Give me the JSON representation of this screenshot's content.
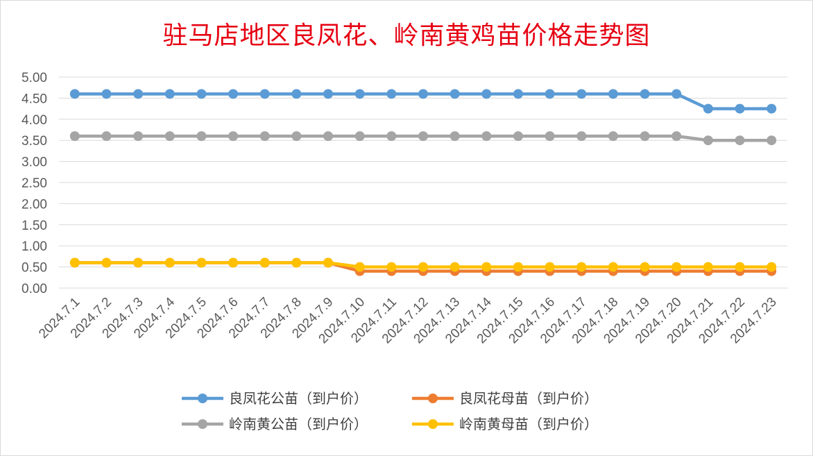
{
  "chart_data": {
    "type": "line",
    "title": "驻马店地区良凤花、岭南黄鸡苗价格走势图",
    "xlabel": "",
    "ylabel": "",
    "ylim": [
      0,
      5
    ],
    "ytick_step": 0.5,
    "grid": true,
    "legend_position": "bottom",
    "categories": [
      "2024.7.1",
      "2024.7.2",
      "2024.7.3",
      "2024.7.4",
      "2024.7.5",
      "2024.7.6",
      "2024.7.7",
      "2024.7.8",
      "2024.7.9",
      "2024.7.10",
      "2024.7.11",
      "2024.7.12",
      "2024.7.13",
      "2024.7.14",
      "2024.7.15",
      "2024.7.16",
      "2024.7.17",
      "2024.7.18",
      "2024.7.19",
      "2024.7.20",
      "2024.7.21",
      "2024.7.22",
      "2024.7.23"
    ],
    "series": [
      {
        "name": "良凤花公苗（到户价）",
        "color": "#5b9bd5",
        "values": [
          4.6,
          4.6,
          4.6,
          4.6,
          4.6,
          4.6,
          4.6,
          4.6,
          4.6,
          4.6,
          4.6,
          4.6,
          4.6,
          4.6,
          4.6,
          4.6,
          4.6,
          4.6,
          4.6,
          4.6,
          4.25,
          4.25,
          4.25
        ]
      },
      {
        "name": "良凤花母苗（到户价）",
        "color": "#ed7d31",
        "values": [
          0.6,
          0.6,
          0.6,
          0.6,
          0.6,
          0.6,
          0.6,
          0.6,
          0.6,
          0.4,
          0.4,
          0.4,
          0.4,
          0.4,
          0.4,
          0.4,
          0.4,
          0.4,
          0.4,
          0.4,
          0.4,
          0.4,
          0.4
        ]
      },
      {
        "name": "岭南黄公苗（到户价）",
        "color": "#a5a5a5",
        "values": [
          3.6,
          3.6,
          3.6,
          3.6,
          3.6,
          3.6,
          3.6,
          3.6,
          3.6,
          3.6,
          3.6,
          3.6,
          3.6,
          3.6,
          3.6,
          3.6,
          3.6,
          3.6,
          3.6,
          3.6,
          3.5,
          3.5,
          3.5
        ]
      },
      {
        "name": "岭南黄母苗（到户价）",
        "color": "#ffc000",
        "values": [
          0.6,
          0.6,
          0.6,
          0.6,
          0.6,
          0.6,
          0.6,
          0.6,
          0.6,
          0.5,
          0.5,
          0.5,
          0.5,
          0.5,
          0.5,
          0.5,
          0.5,
          0.5,
          0.5,
          0.5,
          0.5,
          0.5,
          0.5
        ]
      }
    ]
  }
}
